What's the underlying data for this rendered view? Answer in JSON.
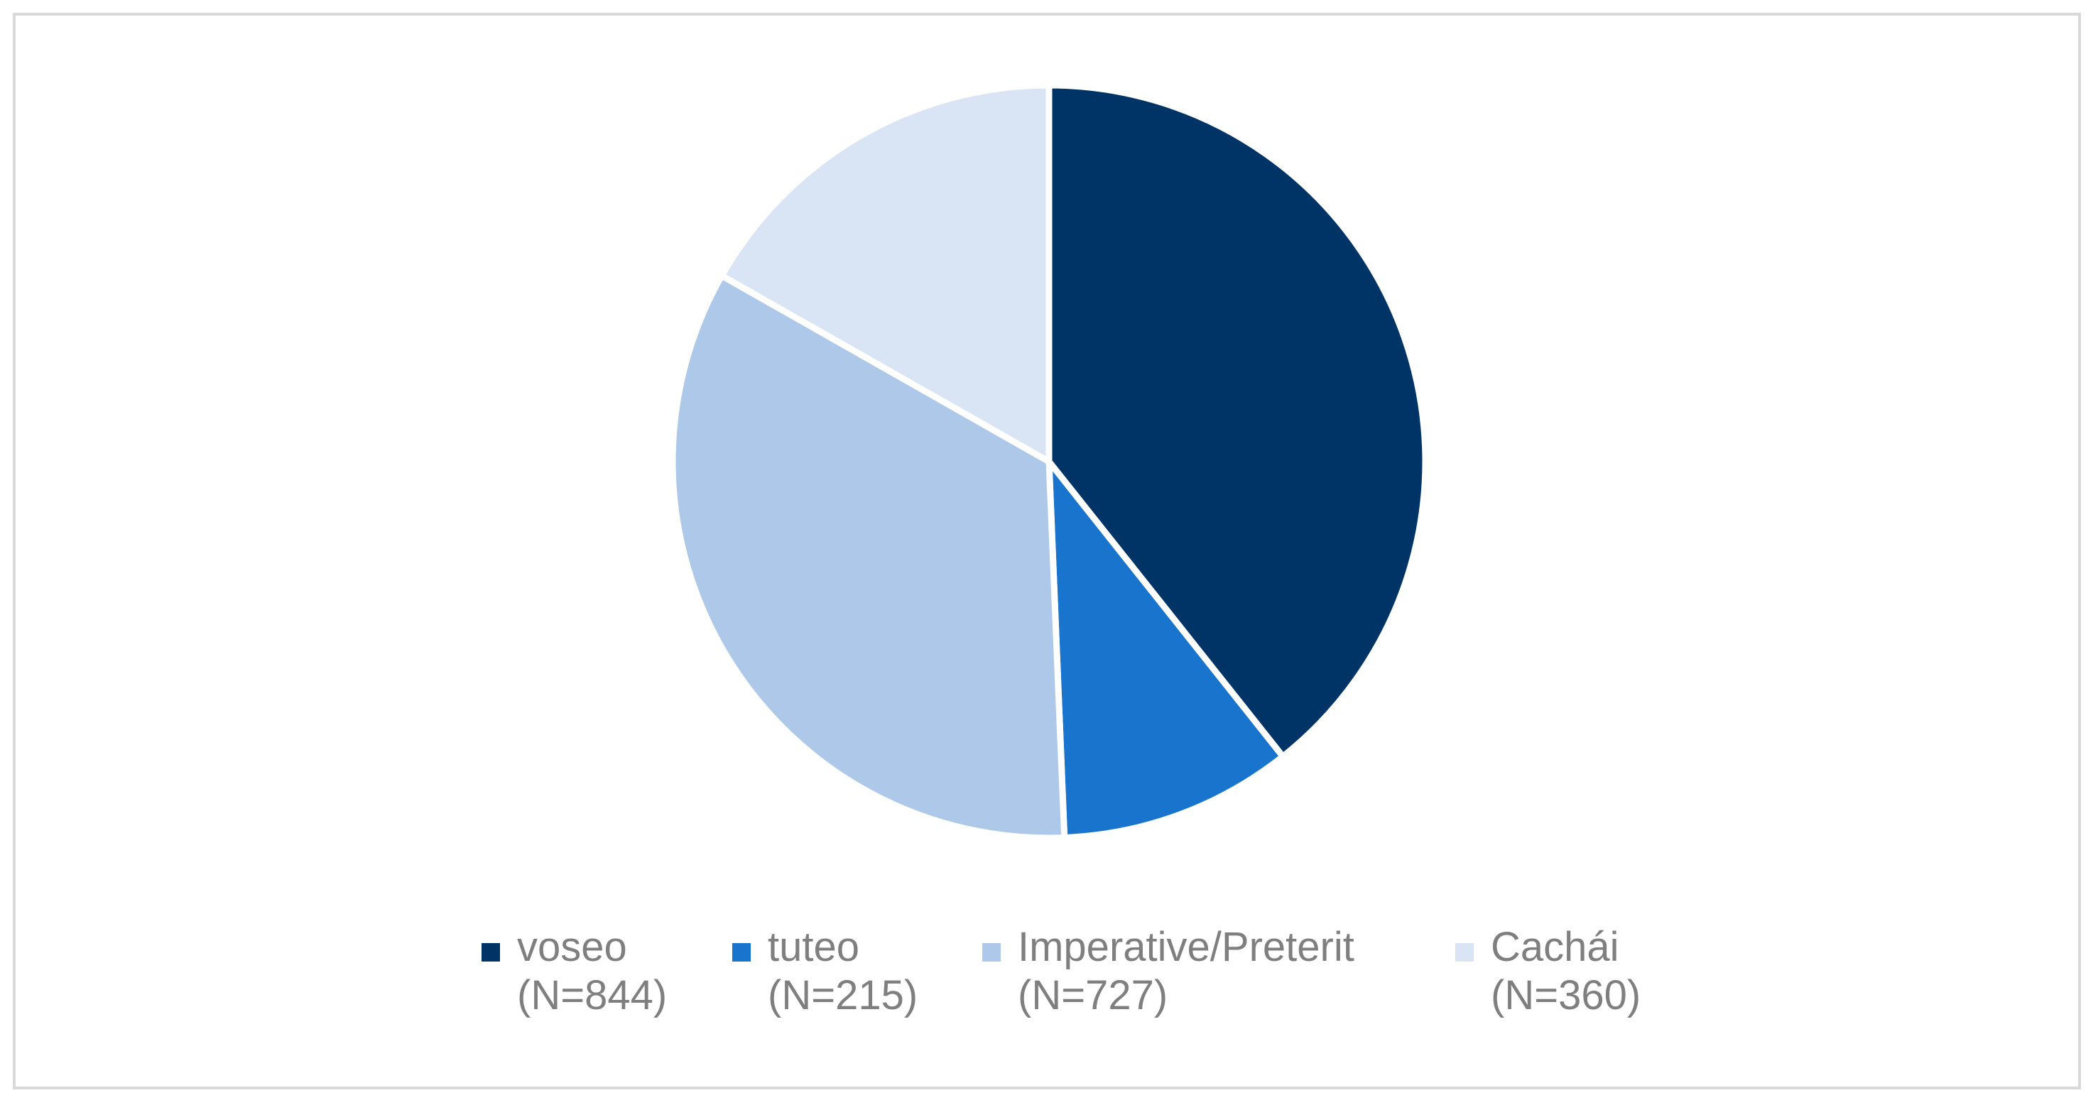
{
  "chart_data": {
    "type": "pie",
    "title": "",
    "slices": [
      {
        "label": "voseo",
        "count_label": "(N=844)",
        "value": 844,
        "color": "#003366"
      },
      {
        "label": "tuteo",
        "count_label": "(N=215)",
        "value": 215,
        "color": "#1874CD"
      },
      {
        "label": "Imperative/Preterit",
        "count_label": "(N=727)",
        "value": 727,
        "color": "#ADC8E8"
      },
      {
        "label": "Cachái",
        "count_label": "(N=360)",
        "value": 360,
        "color": "#D9E5F4"
      }
    ],
    "start_angle": "12 o'clock",
    "direction": "clockwise",
    "legend_position": "bottom",
    "slice_separator_color": "#ffffff"
  }
}
